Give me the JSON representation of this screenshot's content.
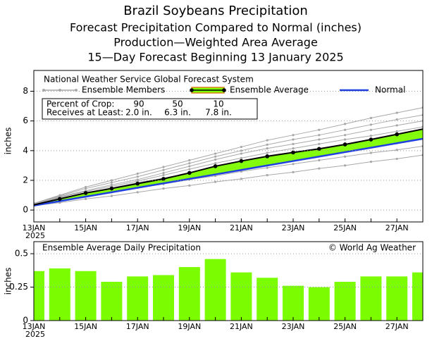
{
  "chart_data": [
    {
      "type": "line",
      "title": [
        "Brazil Soybeans Precipitation",
        "Forecast Precipitation Compared to Normal (inches)",
        "Production—Weighted Area Average",
        "15—Day Forecast Beginning 13 January 2025"
      ],
      "subtitle": "National Weather Service Global Forecast System",
      "ylabel": "inches",
      "year": "2025",
      "categories": [
        "13JAN",
        null,
        "15JAN",
        null,
        "17JAN",
        null,
        "19JAN",
        null,
        "21JAN",
        null,
        "23JAN",
        null,
        "25JAN",
        null,
        "27JAN",
        null
      ],
      "ylim": [
        -0.8,
        9.4
      ],
      "yticks": [
        0,
        2,
        4,
        6,
        8
      ],
      "grid": true,
      "series": [
        {
          "name": "Ensemble Members",
          "color": "#a8a8a8",
          "members": [
            [
              0.3,
              0.5,
              0.75,
              0.95,
              1.2,
              1.45,
              1.65,
              1.9,
              2.1,
              2.35,
              2.55,
              2.8,
              3.0,
              3.25,
              3.45,
              3.7
            ],
            [
              0.35,
              0.65,
              0.95,
              1.2,
              1.5,
              1.75,
              2.05,
              2.3,
              2.6,
              2.85,
              3.1,
              3.35,
              3.6,
              3.85,
              4.05,
              4.3
            ],
            [
              0.35,
              0.7,
              1.0,
              1.3,
              1.6,
              1.9,
              2.25,
              2.6,
              2.95,
              3.2,
              3.45,
              3.7,
              3.95,
              4.25,
              4.5,
              4.8
            ],
            [
              0.4,
              0.8,
              1.15,
              1.5,
              1.85,
              2.15,
              2.5,
              2.9,
              3.25,
              3.5,
              3.8,
              4.05,
              4.35,
              4.65,
              4.9,
              5.2
            ],
            [
              0.4,
              0.85,
              1.25,
              1.6,
              1.95,
              2.35,
              2.75,
              3.15,
              3.5,
              3.85,
              4.15,
              4.45,
              4.75,
              5.0,
              5.3,
              5.6
            ],
            [
              0.4,
              0.9,
              1.3,
              1.7,
              2.05,
              2.5,
              2.95,
              3.4,
              3.8,
              4.15,
              4.45,
              4.75,
              5.05,
              5.4,
              5.7,
              6.0
            ],
            [
              0.45,
              0.95,
              1.45,
              1.85,
              2.25,
              2.7,
              3.15,
              3.6,
              4.0,
              4.4,
              4.75,
              5.05,
              5.4,
              5.75,
              6.1,
              6.4
            ],
            [
              0.45,
              1.0,
              1.55,
              2.0,
              2.45,
              2.9,
              3.35,
              3.8,
              4.25,
              4.7,
              5.05,
              5.4,
              5.8,
              6.2,
              6.55,
              6.9
            ]
          ]
        },
        {
          "name": "Ensemble Average",
          "color": "#000000",
          "band_color": "#7cfc00",
          "edge_color": "#e08020",
          "values": [
            0.35,
            0.75,
            1.15,
            1.45,
            1.78,
            2.1,
            2.5,
            2.95,
            3.3,
            3.62,
            3.88,
            4.12,
            4.42,
            4.75,
            5.1,
            5.45
          ]
        },
        {
          "name": "Normal",
          "color": "#2040e0",
          "values": [
            0.3,
            0.6,
            0.9,
            1.2,
            1.5,
            1.8,
            2.1,
            2.4,
            2.7,
            3.0,
            3.3,
            3.6,
            3.9,
            4.2,
            4.5,
            4.8
          ]
        }
      ],
      "crop_table": {
        "row_labels": [
          "Percent of Crop:",
          "Receives at Least:"
        ],
        "percents": [
          90,
          50,
          10
        ],
        "amounts": [
          "2.0 in.",
          "6.3 in.",
          "7.8 in."
        ]
      }
    },
    {
      "type": "bar",
      "title": "Ensemble Average Daily Precipitation",
      "annotation": "© World Ag Weather",
      "ylabel": "inches",
      "year": "2025",
      "categories": [
        "13JAN",
        null,
        "15JAN",
        null,
        "17JAN",
        null,
        "19JAN",
        null,
        "21JAN",
        null,
        "23JAN",
        null,
        "25JAN",
        null,
        "27JAN",
        null
      ],
      "ylim": [
        0,
        0.59
      ],
      "yticks": [
        0,
        0.25,
        0.5
      ],
      "grid": true,
      "color": "#7cfc00",
      "values": [
        0.37,
        0.39,
        0.37,
        0.29,
        0.33,
        0.34,
        0.4,
        0.46,
        0.36,
        0.32,
        0.26,
        0.25,
        0.29,
        0.33,
        0.33,
        0.36
      ]
    }
  ]
}
